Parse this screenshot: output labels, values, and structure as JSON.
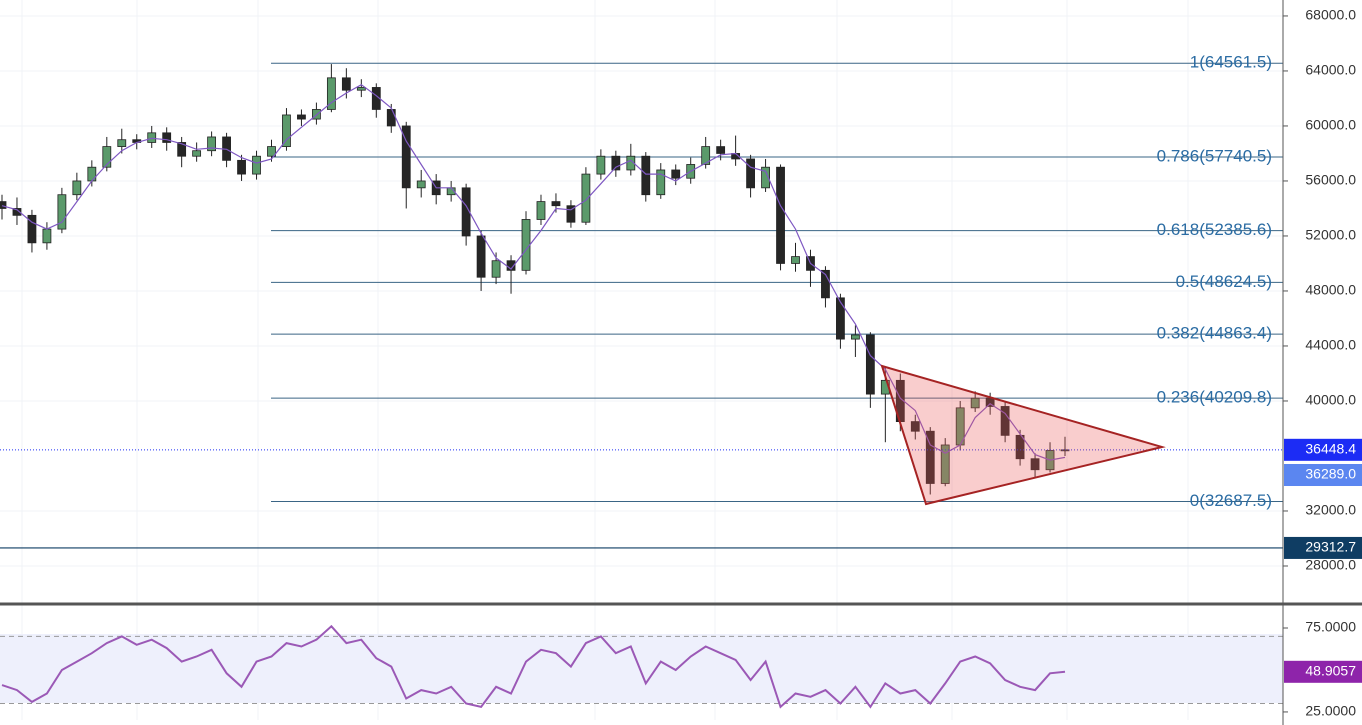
{
  "chart_data": [
    {
      "type": "candlestick",
      "ylim": [
        25890,
        69160
      ],
      "yticks": [
        {
          "value": 68000,
          "label": "68000.0"
        },
        {
          "value": 64000,
          "label": "64000.0"
        },
        {
          "value": 60000,
          "label": "60000.0"
        },
        {
          "value": 56000,
          "label": "56000.0"
        },
        {
          "value": 52000,
          "label": "52000.0"
        },
        {
          "value": 48000,
          "label": "48000.0"
        },
        {
          "value": 44000,
          "label": "44000.0"
        },
        {
          "value": 40000,
          "label": "40000.0"
        },
        {
          "value": 32000,
          "label": "32000.0"
        },
        {
          "value": 28000,
          "label": "28000.0"
        }
      ],
      "up_color": "#5b9a6b",
      "down_color": "#262626",
      "open": [
        54500,
        54000,
        53500,
        51500,
        52500,
        55000,
        56000,
        57000,
        58500,
        59000,
        58800,
        59500,
        58800,
        57800,
        58200,
        59200,
        57500,
        56500,
        57800,
        58500,
        60800,
        60500,
        61200,
        63500,
        62600,
        62800,
        61200,
        60000,
        55500,
        56000,
        55000,
        55500,
        52000,
        49000,
        50200,
        49500,
        53200,
        54500,
        54200,
        53000,
        56500,
        57800,
        56800,
        57800,
        55000,
        56800,
        56200,
        57200,
        58500,
        58000,
        57600,
        55500,
        57000,
        50000,
        50500,
        49500,
        47500,
        44500,
        44800,
        40500,
        41500,
        38500,
        37800,
        34000,
        36800,
        39500,
        40200,
        39600,
        37500,
        35800,
        35000,
        36400
      ],
      "high": [
        55000,
        54800,
        53900,
        53000,
        55500,
        56600,
        57500,
        59200,
        59800,
        59400,
        60000,
        59900,
        59200,
        58800,
        59600,
        59500,
        57900,
        58200,
        59000,
        61300,
        61200,
        61700,
        64500,
        64200,
        63400,
        63100,
        61600,
        60300,
        56800,
        56500,
        56000,
        55800,
        52400,
        50800,
        50600,
        53800,
        55000,
        55100,
        54600,
        57000,
        58300,
        58200,
        58700,
        58100,
        57300,
        57200,
        57700,
        59200,
        59000,
        59300,
        57900,
        57600,
        57200,
        51500,
        51000,
        49800,
        47800,
        45500,
        45000,
        42500,
        42000,
        39000,
        38100,
        37300,
        40000,
        40700,
        40600,
        39900,
        37900,
        36200,
        37000,
        37400
      ],
      "low": [
        53200,
        52800,
        50800,
        51000,
        52200,
        54600,
        55600,
        56700,
        58000,
        58300,
        58400,
        58200,
        57000,
        57400,
        57800,
        57000,
        56000,
        56100,
        57400,
        58200,
        60000,
        60100,
        61000,
        62000,
        62100,
        60600,
        59500,
        54000,
        54800,
        54300,
        54500,
        51300,
        48000,
        48500,
        47800,
        49200,
        52800,
        53700,
        52600,
        52800,
        56100,
        56300,
        56400,
        54500,
        54700,
        55700,
        55800,
        56900,
        57500,
        57100,
        54800,
        55200,
        49500,
        49400,
        48300,
        46800,
        43800,
        43200,
        39500,
        37000,
        37800,
        37200,
        33200,
        33800,
        36400,
        39200,
        39000,
        37000,
        35300,
        34400,
        34800,
        36000
      ],
      "close": [
        54000,
        53500,
        51500,
        52500,
        55000,
        56000,
        57000,
        58500,
        59000,
        58800,
        59500,
        58800,
        57800,
        58200,
        59200,
        57500,
        56500,
        57800,
        58500,
        60800,
        60500,
        61200,
        63500,
        62600,
        62800,
        61200,
        60000,
        55500,
        56000,
        55000,
        55500,
        52000,
        49000,
        50200,
        49500,
        53200,
        54500,
        54200,
        53000,
        56500,
        57800,
        56800,
        57800,
        55000,
        56800,
        56200,
        57200,
        58500,
        58000,
        57600,
        55500,
        57000,
        50000,
        50500,
        49500,
        47500,
        44500,
        44800,
        40500,
        41500,
        38500,
        37800,
        34000,
        36800,
        39500,
        40200,
        39600,
        37500,
        35800,
        35000,
        36400,
        36448.4
      ],
      "ma": {
        "color": "#7e57c2",
        "values": [
          54200,
          53900,
          53000,
          52500,
          53000,
          54500,
          56000,
          57200,
          58200,
          58800,
          59100,
          59000,
          58700,
          58300,
          58400,
          58300,
          57700,
          57300,
          57600,
          59000,
          59900,
          60800,
          61700,
          62400,
          63000,
          62200,
          61300,
          58900,
          57200,
          55500,
          55500,
          54200,
          52200,
          50400,
          49600,
          51000,
          52400,
          54000,
          53900,
          54600,
          55800,
          57000,
          57500,
          56500,
          56500,
          56000,
          56700,
          57300,
          57900,
          58000,
          57000,
          56700,
          54200,
          52500,
          50000,
          49200,
          47200,
          45600,
          43300,
          42300,
          40200,
          39300,
          36800,
          36200,
          36800,
          38800,
          39800,
          39100,
          37600,
          36100,
          35700,
          35900
        ]
      },
      "levels_color": "#2b6ca3",
      "levels": [
        {
          "label": "1(64561.5)",
          "value": 64561.5
        },
        {
          "label": "0.786(57740.5)",
          "value": 57740.5
        },
        {
          "label": "0.618(52385.6)",
          "value": 52385.6
        },
        {
          "label": "0.5(48624.5)",
          "value": 48624.5
        },
        {
          "label": "0.382(44863.4)",
          "value": 44863.4
        },
        {
          "label": "0.236(40209.8)",
          "value": 40209.8
        },
        {
          "label": "0(32687.5)",
          "value": 32687.5
        }
      ],
      "price_markers": [
        {
          "value": 36448.4,
          "label": "36448.4",
          "color": "#1c2cf5"
        },
        {
          "value": 36289,
          "label": "36289.0",
          "color": "#5b86f0"
        },
        {
          "value": 29312.7,
          "label": "29312.7",
          "color": "#0f3d63"
        }
      ]
    },
    {
      "type": "line",
      "ylim": [
        20.2,
        88.1
      ],
      "yticks": [
        {
          "value": 75,
          "label": "75.0000"
        },
        {
          "value": 25,
          "label": "25.0000"
        }
      ],
      "bands": [
        30,
        70
      ],
      "color": "#9b59b6",
      "values": [
        41,
        38,
        31,
        36,
        50,
        55,
        60,
        66,
        70,
        65,
        68,
        63,
        55,
        58,
        62,
        48,
        40,
        55,
        58,
        66,
        64,
        68,
        76,
        66,
        68,
        57,
        52,
        33,
        38,
        36,
        40,
        30,
        28,
        40,
        36,
        55,
        62,
        60,
        52,
        66,
        70,
        60,
        64,
        42,
        55,
        50,
        58,
        64,
        60,
        56,
        44,
        55,
        28,
        36,
        34,
        38,
        30,
        40,
        28,
        42,
        36,
        38,
        30,
        42,
        55,
        58,
        54,
        44,
        40,
        38,
        48,
        48.9057
      ],
      "marker": {
        "value": 48.9057,
        "label": "48.9057",
        "color": "#8e24aa"
      }
    }
  ]
}
